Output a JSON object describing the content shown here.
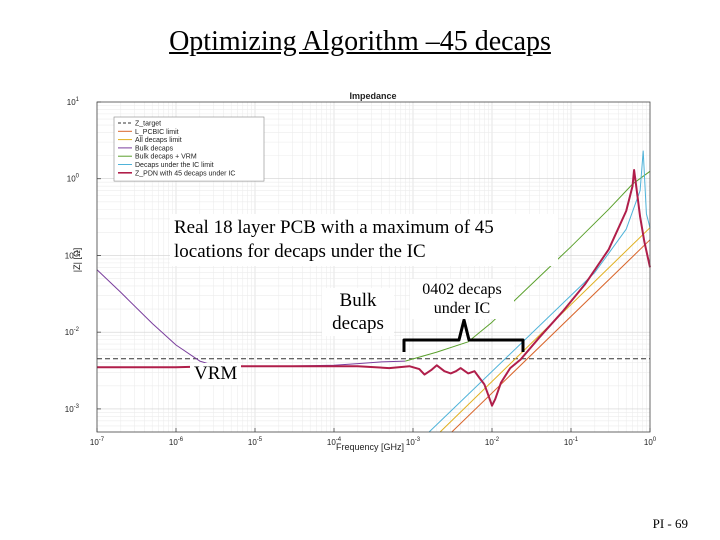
{
  "slide": {
    "title": "Optimizing Algorithm –45 decaps",
    "page_number": "PI - 69"
  },
  "annotations": {
    "board_note_line1": "Real 18 layer PCB with a maximum of 45",
    "board_note_line2": "locations for decaps under the IC",
    "bulk_line1": "Bulk",
    "bulk_line2": "decaps",
    "decaps0402_line1": "0402 decaps",
    "decaps0402_line2": "under IC",
    "vrm": "VRM"
  },
  "chart_data": {
    "type": "line",
    "title": "Impedance",
    "xlabel": "Frequency [GHz]",
    "ylabel": "|Z| [Ω]",
    "x_scale": "log",
    "y_scale": "log",
    "xlim": [
      1e-07,
      1
    ],
    "ylim": [
      0.0005,
      10
    ],
    "x_ticks": [
      {
        "v": 1e-07,
        "b": "10",
        "e": "-7"
      },
      {
        "v": 1e-06,
        "b": "10",
        "e": "-6"
      },
      {
        "v": 1e-05,
        "b": "10",
        "e": "-5"
      },
      {
        "v": 0.0001,
        "b": "10",
        "e": "-4"
      },
      {
        "v": 0.001,
        "b": "10",
        "e": "-3"
      },
      {
        "v": 0.01,
        "b": "10",
        "e": "-2"
      },
      {
        "v": 0.1,
        "b": "10",
        "e": "-1"
      },
      {
        "v": 1,
        "b": "10",
        "e": "0"
      }
    ],
    "y_ticks": [
      {
        "v": 0.001,
        "b": "10",
        "e": "-3"
      },
      {
        "v": 0.01,
        "b": "10",
        "e": "-2"
      },
      {
        "v": 0.1,
        "b": "10",
        "e": "-1"
      },
      {
        "v": 1,
        "b": "10",
        "e": "0"
      },
      {
        "v": 10,
        "b": "10",
        "e": "1"
      }
    ],
    "grid": true,
    "legend_position": "top-left",
    "series": [
      {
        "name": "Z_target",
        "color": "#333333",
        "dash": "5,3",
        "width": 1,
        "points": [
          [
            1e-07,
            0.0045
          ],
          [
            1,
            0.0045
          ]
        ]
      },
      {
        "name": "L_PCBIC limit",
        "color": "#d9652b",
        "width": 1,
        "points": [
          [
            0.0031,
            0.0005
          ],
          [
            1,
            0.16
          ]
        ]
      },
      {
        "name": "All decaps limit",
        "color": "#e0b020",
        "width": 1,
        "points": [
          [
            0.0022,
            0.0005
          ],
          [
            1,
            0.23
          ]
        ]
      },
      {
        "name": "Bulk decaps",
        "color": "#7a3e9d",
        "width": 1,
        "points": [
          [
            1e-07,
            0.065
          ],
          [
            2e-07,
            0.033
          ],
          [
            5e-07,
            0.013
          ],
          [
            1e-06,
            0.0068
          ],
          [
            2e-06,
            0.0042
          ],
          [
            3e-06,
            0.0037
          ],
          [
            5e-06,
            0.0036
          ],
          [
            2e-05,
            0.0036
          ],
          [
            0.0001,
            0.0037
          ],
          [
            0.0002,
            0.0039
          ],
          [
            0.0004,
            0.0041
          ],
          [
            0.0008,
            0.0042
          ]
        ]
      },
      {
        "name": "Bulk decaps + VRM",
        "color": "#5aa02c",
        "width": 1,
        "points": [
          [
            0.0008,
            0.0042
          ],
          [
            0.002,
            0.0055
          ],
          [
            0.005,
            0.0075
          ],
          [
            0.01,
            0.0135
          ],
          [
            0.03,
            0.04
          ],
          [
            0.1,
            0.13
          ],
          [
            0.3,
            0.4
          ],
          [
            0.6,
            0.85
          ],
          [
            1,
            1.25
          ]
        ]
      },
      {
        "name": "Decaps under the IC limit",
        "color": "#4fb3d9",
        "width": 1,
        "points": [
          [
            0.0016,
            0.0005
          ],
          [
            0.2,
            0.06
          ],
          [
            0.5,
            0.22
          ],
          [
            0.75,
            0.7
          ],
          [
            0.82,
            2.3
          ],
          [
            0.86,
            0.9
          ],
          [
            0.9,
            0.35
          ],
          [
            1,
            0.23
          ]
        ]
      },
      {
        "name": "Z_PDN with 45 decaps under IC",
        "color": "#b01e4a",
        "width": 2,
        "points": [
          [
            1e-07,
            0.0035
          ],
          [
            1e-06,
            0.0035
          ],
          [
            3e-06,
            0.0036
          ],
          [
            1e-05,
            0.0036
          ],
          [
            5e-05,
            0.0036
          ],
          [
            0.0001,
            0.0036
          ],
          [
            0.0002,
            0.0036
          ],
          [
            0.0005,
            0.0034
          ],
          [
            0.0009,
            0.0036
          ],
          [
            0.0012,
            0.0033
          ],
          [
            0.0014,
            0.0028
          ],
          [
            0.0017,
            0.0032
          ],
          [
            0.002,
            0.0037
          ],
          [
            0.0025,
            0.0031
          ],
          [
            0.003,
            0.0029
          ],
          [
            0.0035,
            0.0031
          ],
          [
            0.004,
            0.0034
          ],
          [
            0.005,
            0.0029
          ],
          [
            0.006,
            0.0031
          ],
          [
            0.007,
            0.0025
          ],
          [
            0.008,
            0.0021
          ],
          [
            0.009,
            0.0015
          ],
          [
            0.01,
            0.0011
          ],
          [
            0.011,
            0.00135
          ],
          [
            0.013,
            0.0022
          ],
          [
            0.017,
            0.0034
          ],
          [
            0.023,
            0.0044
          ],
          [
            0.04,
            0.0086
          ],
          [
            0.08,
            0.019
          ],
          [
            0.15,
            0.042
          ],
          [
            0.3,
            0.12
          ],
          [
            0.5,
            0.38
          ],
          [
            0.6,
            0.8
          ],
          [
            0.63,
            1.3
          ],
          [
            0.66,
            0.9
          ],
          [
            0.75,
            0.32
          ],
          [
            0.85,
            0.15
          ],
          [
            1,
            0.07
          ]
        ]
      }
    ]
  }
}
